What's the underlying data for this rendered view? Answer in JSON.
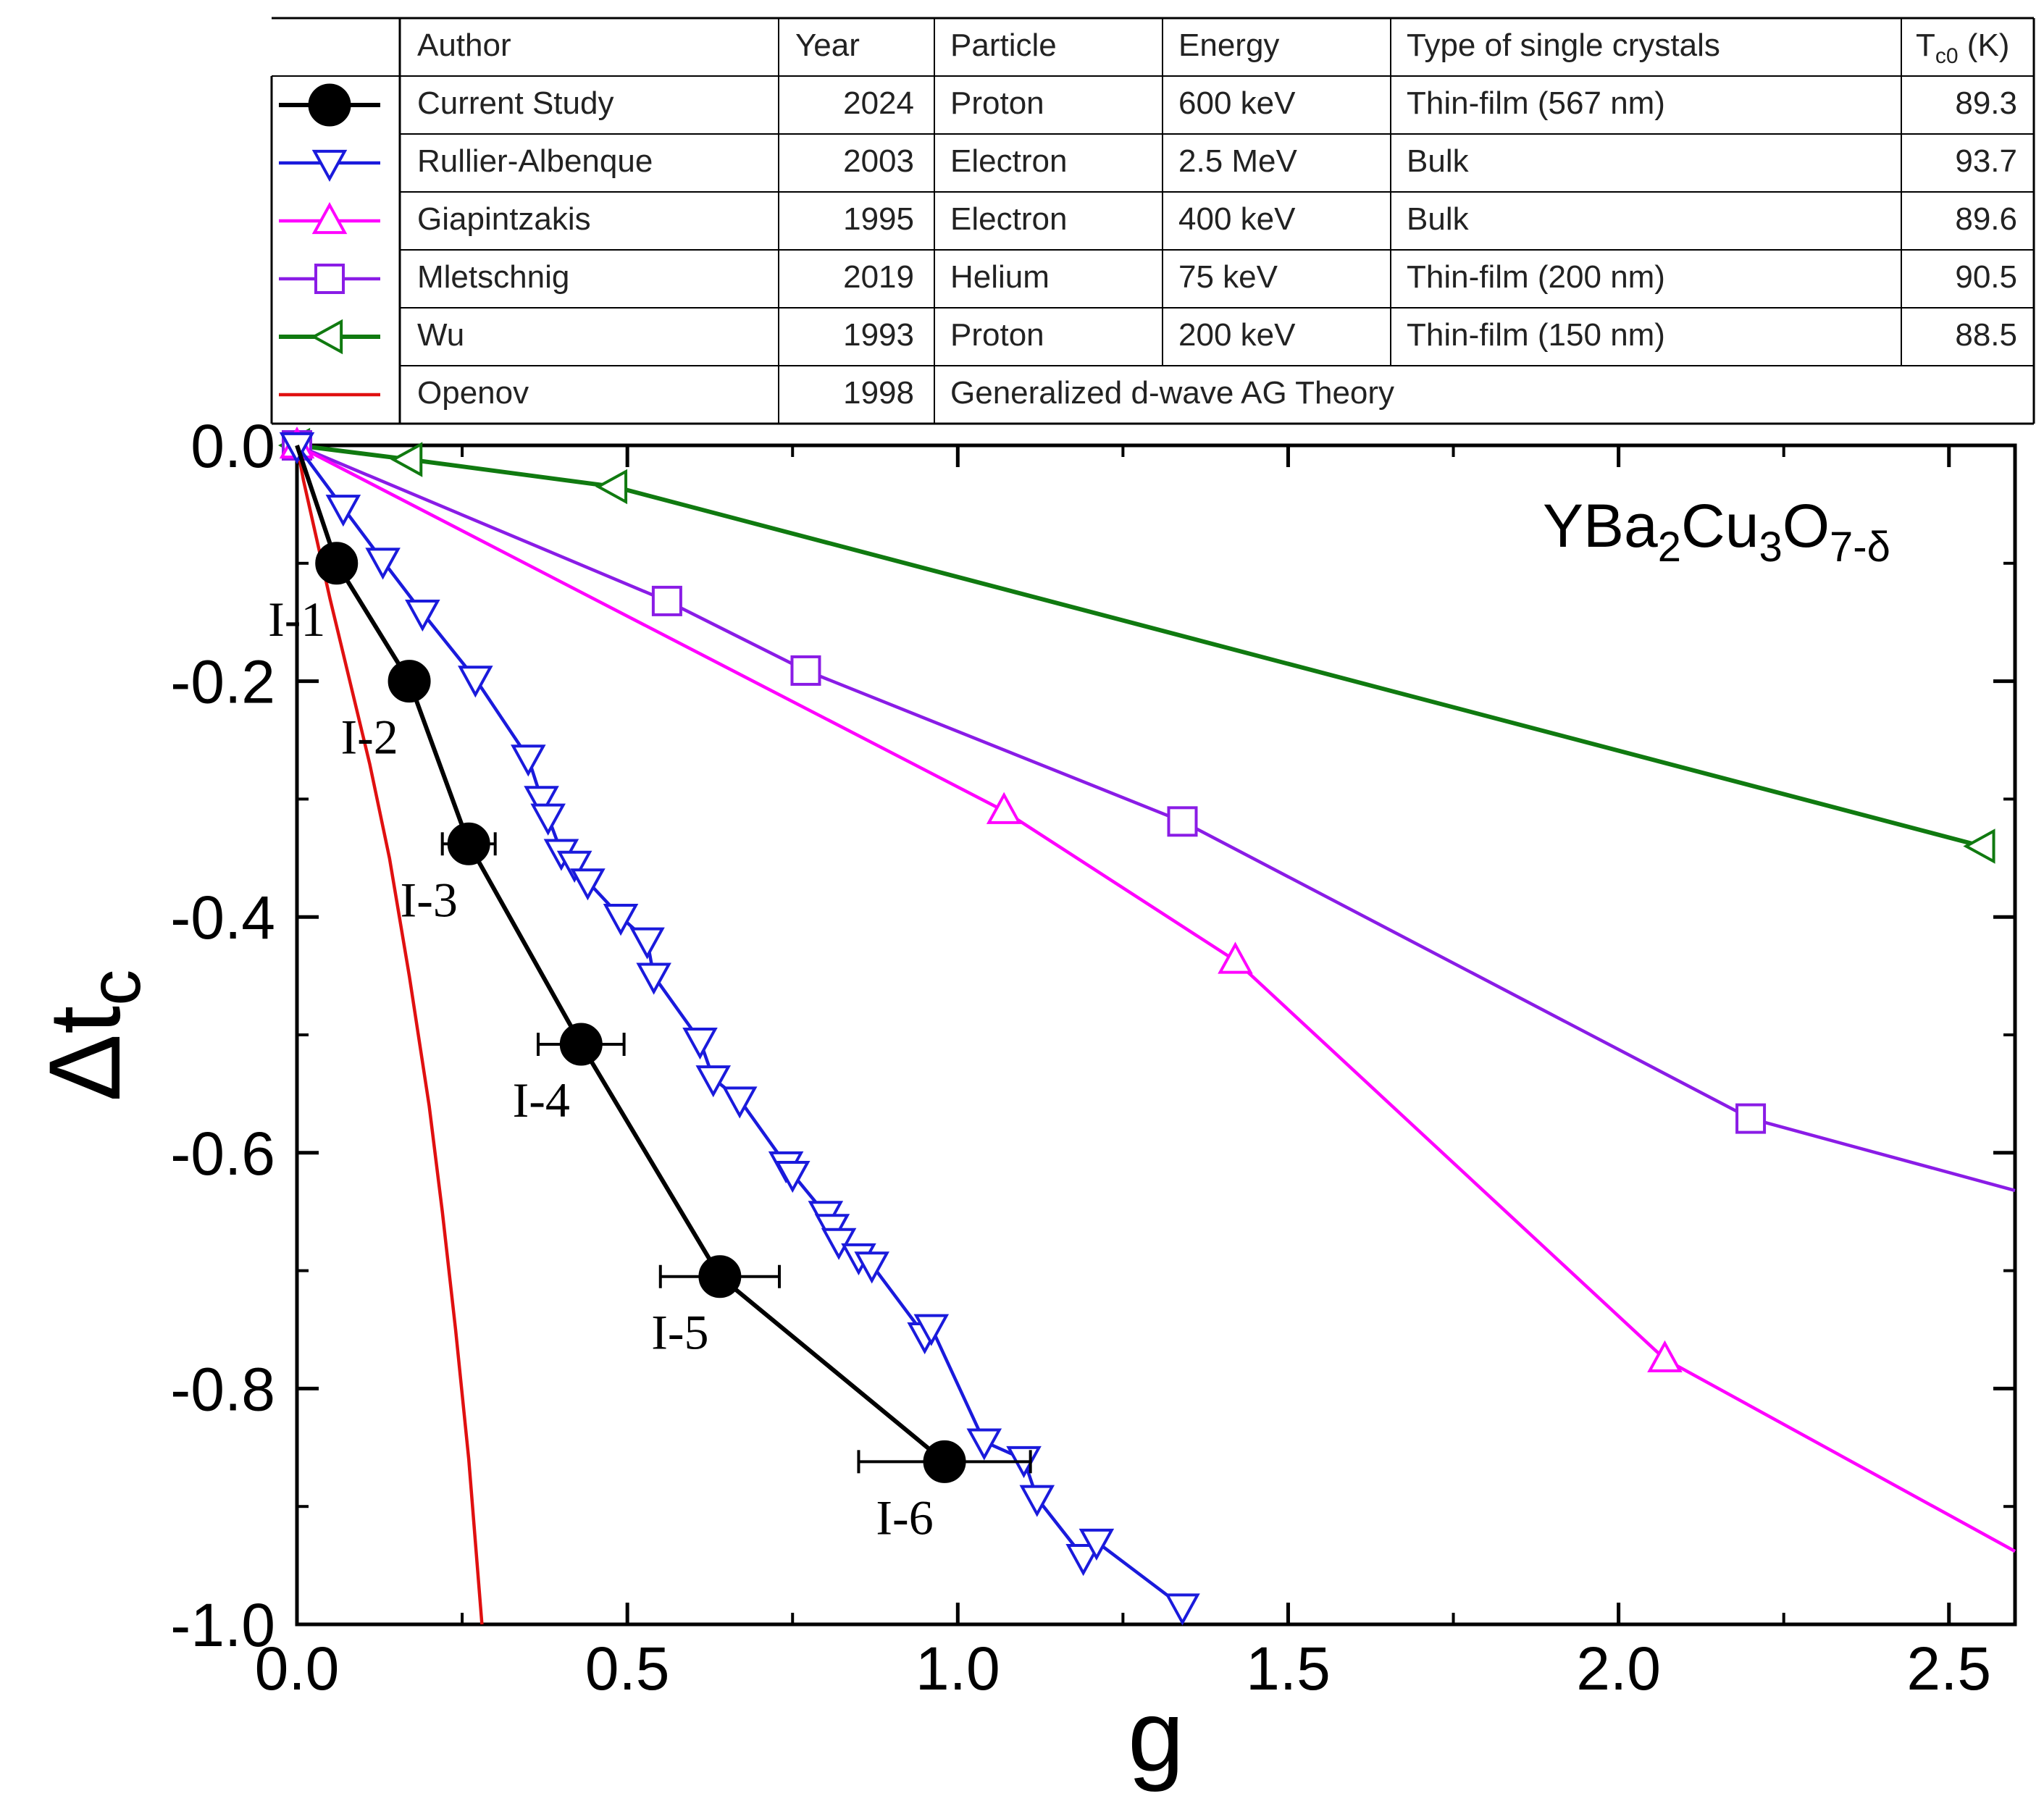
{
  "chart_data": {
    "type": "line",
    "title": "",
    "xlabel": "g",
    "ylabel": "Δt",
    "ylabel_sub": "c",
    "xlim": [
      0,
      2.6
    ],
    "ylim": [
      -1.0,
      0.0
    ],
    "x_ticks": [
      0.0,
      0.5,
      1.0,
      1.5,
      2.0,
      2.5
    ],
    "x_tick_labels": [
      "0.0",
      "0.5",
      "1.0",
      "1.5",
      "2.0",
      "2.5"
    ],
    "y_ticks": [
      0.0,
      -0.2,
      -0.4,
      -0.6,
      -0.8,
      -1.0
    ],
    "y_tick_labels": [
      "0.0",
      "-0.2",
      "-0.4",
      "-0.6",
      "-0.8",
      "-1.0"
    ],
    "annotation": {
      "parts": [
        "YBa",
        "2",
        "Cu",
        "3",
        "O",
        "7-δ"
      ],
      "position": "top-right"
    },
    "legend_table": {
      "headers": [
        "Author",
        "Year",
        "Particle",
        "Energy",
        "Type of single crystals",
        "T",
        "c0",
        " (K)"
      ],
      "rows": [
        {
          "author": "Current Study",
          "year": "2024",
          "particle": "Proton",
          "energy": "600 keV",
          "crystal": "Thin-film (567 nm)",
          "tc0": "89.3"
        },
        {
          "author": "Rullier-Albenque",
          "year": "2003",
          "particle": "Electron",
          "energy": "2.5 MeV",
          "crystal": "Bulk",
          "tc0": "93.7"
        },
        {
          "author": "Giapintzakis",
          "year": "1995",
          "particle": "Electron",
          "energy": "400 keV",
          "crystal": "Bulk",
          "tc0": "89.6"
        },
        {
          "author": "Mletschnig",
          "year": "2019",
          "particle": "Helium",
          "energy": "75 keV",
          "crystal": "Thin-film (200 nm)",
          "tc0": "90.5"
        },
        {
          "author": "Wu",
          "year": "1993",
          "particle": "Proton",
          "energy": "200 keV",
          "crystal": "Thin-film (150 nm)",
          "tc0": "88.5"
        },
        {
          "author": "Openov",
          "year": "1998",
          "theory": "Generalized d-wave AG Theory"
        }
      ]
    },
    "series": [
      {
        "name": "Current Study",
        "color": "#000000",
        "marker": "filled-circle",
        "points": [
          {
            "x": 0.0,
            "y": 0.0
          },
          {
            "x": 0.06,
            "y": -0.1,
            "xerr": 0.0,
            "label": "I-1"
          },
          {
            "x": 0.17,
            "y": -0.2,
            "xerr": 0.02,
            "label": "I-2"
          },
          {
            "x": 0.26,
            "y": -0.338,
            "xerr": 0.04,
            "label": "I-3"
          },
          {
            "x": 0.43,
            "y": -0.508,
            "xerr": 0.065,
            "label": "I-4"
          },
          {
            "x": 0.64,
            "y": -0.705,
            "xerr": 0.09,
            "label": "I-5"
          },
          {
            "x": 0.98,
            "y": -0.862,
            "xerr": 0.13,
            "label": "I-6"
          }
        ]
      },
      {
        "name": "Rullier-Albenque",
        "color": "#1a1adc",
        "marker": "triangle-down",
        "points": [
          {
            "x": 0.0,
            "y": 0.0
          },
          {
            "x": 0.07,
            "y": -0.053
          },
          {
            "x": 0.13,
            "y": -0.098
          },
          {
            "x": 0.19,
            "y": -0.142
          },
          {
            "x": 0.27,
            "y": -0.198
          },
          {
            "x": 0.35,
            "y": -0.265
          },
          {
            "x": 0.37,
            "y": -0.3
          },
          {
            "x": 0.38,
            "y": -0.315
          },
          {
            "x": 0.4,
            "y": -0.345
          },
          {
            "x": 0.42,
            "y": -0.355
          },
          {
            "x": 0.44,
            "y": -0.37
          },
          {
            "x": 0.49,
            "y": -0.4
          },
          {
            "x": 0.53,
            "y": -0.42
          },
          {
            "x": 0.54,
            "y": -0.45
          },
          {
            "x": 0.61,
            "y": -0.505
          },
          {
            "x": 0.63,
            "y": -0.537
          },
          {
            "x": 0.67,
            "y": -0.555
          },
          {
            "x": 0.74,
            "y": -0.61
          },
          {
            "x": 0.75,
            "y": -0.618
          },
          {
            "x": 0.8,
            "y": -0.652
          },
          {
            "x": 0.81,
            "y": -0.663
          },
          {
            "x": 0.82,
            "y": -0.675
          },
          {
            "x": 0.85,
            "y": -0.688
          },
          {
            "x": 0.87,
            "y": -0.695
          },
          {
            "x": 0.95,
            "y": -0.755
          },
          {
            "x": 0.96,
            "y": -0.748
          },
          {
            "x": 1.04,
            "y": -0.845
          },
          {
            "x": 1.1,
            "y": -0.86
          },
          {
            "x": 1.12,
            "y": -0.893
          },
          {
            "x": 1.19,
            "y": -0.943
          },
          {
            "x": 1.21,
            "y": -0.93
          },
          {
            "x": 1.34,
            "y": -0.985
          }
        ]
      },
      {
        "name": "Giapintzakis",
        "color": "#ff00ff",
        "marker": "triangle-up",
        "points": [
          {
            "x": 0.0,
            "y": 0.0
          },
          {
            "x": 1.07,
            "y": -0.31
          },
          {
            "x": 1.42,
            "y": -0.437
          },
          {
            "x": 2.07,
            "y": -0.775
          },
          {
            "x": 2.6,
            "y": -0.938,
            "no_marker": true
          }
        ]
      },
      {
        "name": "Mletschnig",
        "color": "#8a1ce6",
        "marker": "square",
        "points": [
          {
            "x": 0.0,
            "y": 0.0
          },
          {
            "x": 0.56,
            "y": -0.132
          },
          {
            "x": 0.77,
            "y": -0.191
          },
          {
            "x": 1.34,
            "y": -0.319
          },
          {
            "x": 2.2,
            "y": -0.571
          },
          {
            "x": 2.6,
            "y": -0.632,
            "no_marker": true
          }
        ]
      },
      {
        "name": "Wu",
        "color": "#107a10",
        "marker": "triangle-left",
        "points": [
          {
            "x": 0.0,
            "y": 0.0
          },
          {
            "x": 0.17,
            "y": -0.012
          },
          {
            "x": 0.48,
            "y": -0.035
          },
          {
            "x": 2.55,
            "y": -0.34
          }
        ]
      },
      {
        "name": "Openov",
        "color": "#e01010",
        "marker": "none",
        "curve": [
          {
            "x": 0.0,
            "y": 0.0
          },
          {
            "x": 0.01,
            "y": -0.03
          },
          {
            "x": 0.03,
            "y": -0.08
          },
          {
            "x": 0.05,
            "y": -0.13
          },
          {
            "x": 0.08,
            "y": -0.2
          },
          {
            "x": 0.11,
            "y": -0.27
          },
          {
            "x": 0.14,
            "y": -0.35
          },
          {
            "x": 0.17,
            "y": -0.45
          },
          {
            "x": 0.2,
            "y": -0.56
          },
          {
            "x": 0.22,
            "y": -0.65
          },
          {
            "x": 0.24,
            "y": -0.75
          },
          {
            "x": 0.26,
            "y": -0.86
          },
          {
            "x": 0.27,
            "y": -0.93
          },
          {
            "x": 0.28,
            "y": -1.0
          }
        ]
      }
    ]
  }
}
